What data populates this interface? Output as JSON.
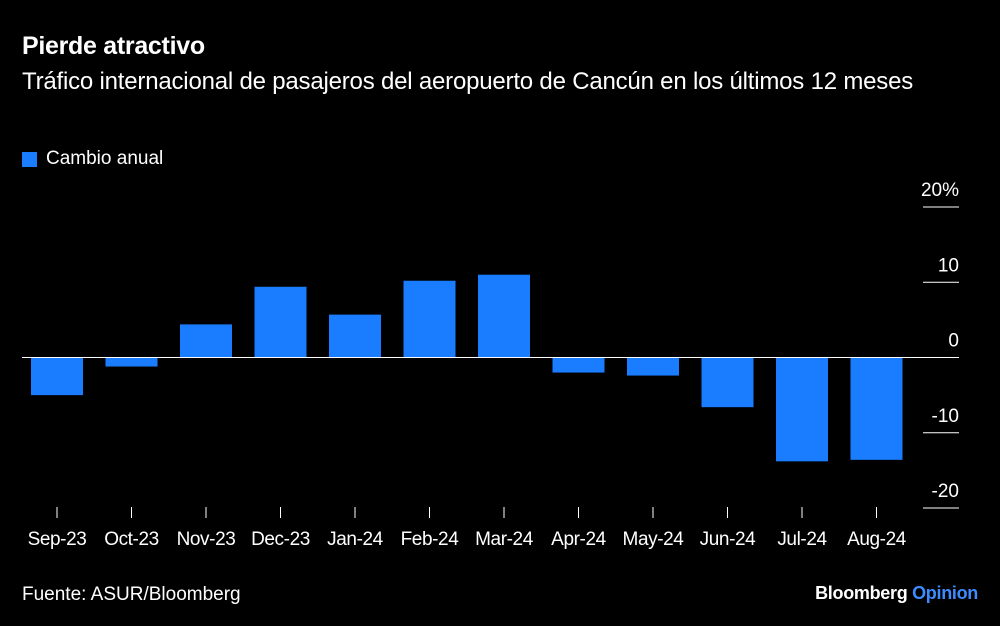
{
  "header": {
    "title": "Pierde atractivo",
    "subtitle": "Tráfico internacional de pasajeros del aeropuerto de Cancún en los últimos 12 meses"
  },
  "legend": {
    "label": "Cambio anual"
  },
  "footer": {
    "source": "Fuente: ASUR/Bloomberg",
    "brand_main": "Bloomberg",
    "brand_sub": "Opinion"
  },
  "colors": {
    "bar": "#1a7cff",
    "background": "#000000",
    "text": "#ffffff",
    "brand_accent": "#3d8bff"
  },
  "chart_data": {
    "type": "bar",
    "categories": [
      "Sep-23",
      "Oct-23",
      "Nov-23",
      "Dec-23",
      "Jan-24",
      "Feb-24",
      "Mar-24",
      "Apr-24",
      "May-24",
      "Jun-24",
      "Jul-24",
      "Aug-24"
    ],
    "series": [
      {
        "name": "Cambio anual",
        "values": [
          -5,
          -1.2,
          4.4,
          9.4,
          5.7,
          10.2,
          11,
          -2,
          -2.4,
          -6.6,
          -13.8,
          -13.6
        ]
      }
    ],
    "ylim": [
      -20,
      20
    ],
    "yticks": [
      20,
      10,
      0,
      -10,
      -20
    ],
    "ytick_labels": [
      "20%",
      "10",
      "0",
      "-10",
      "-20"
    ],
    "y_axis_position": "right",
    "grid": false
  }
}
